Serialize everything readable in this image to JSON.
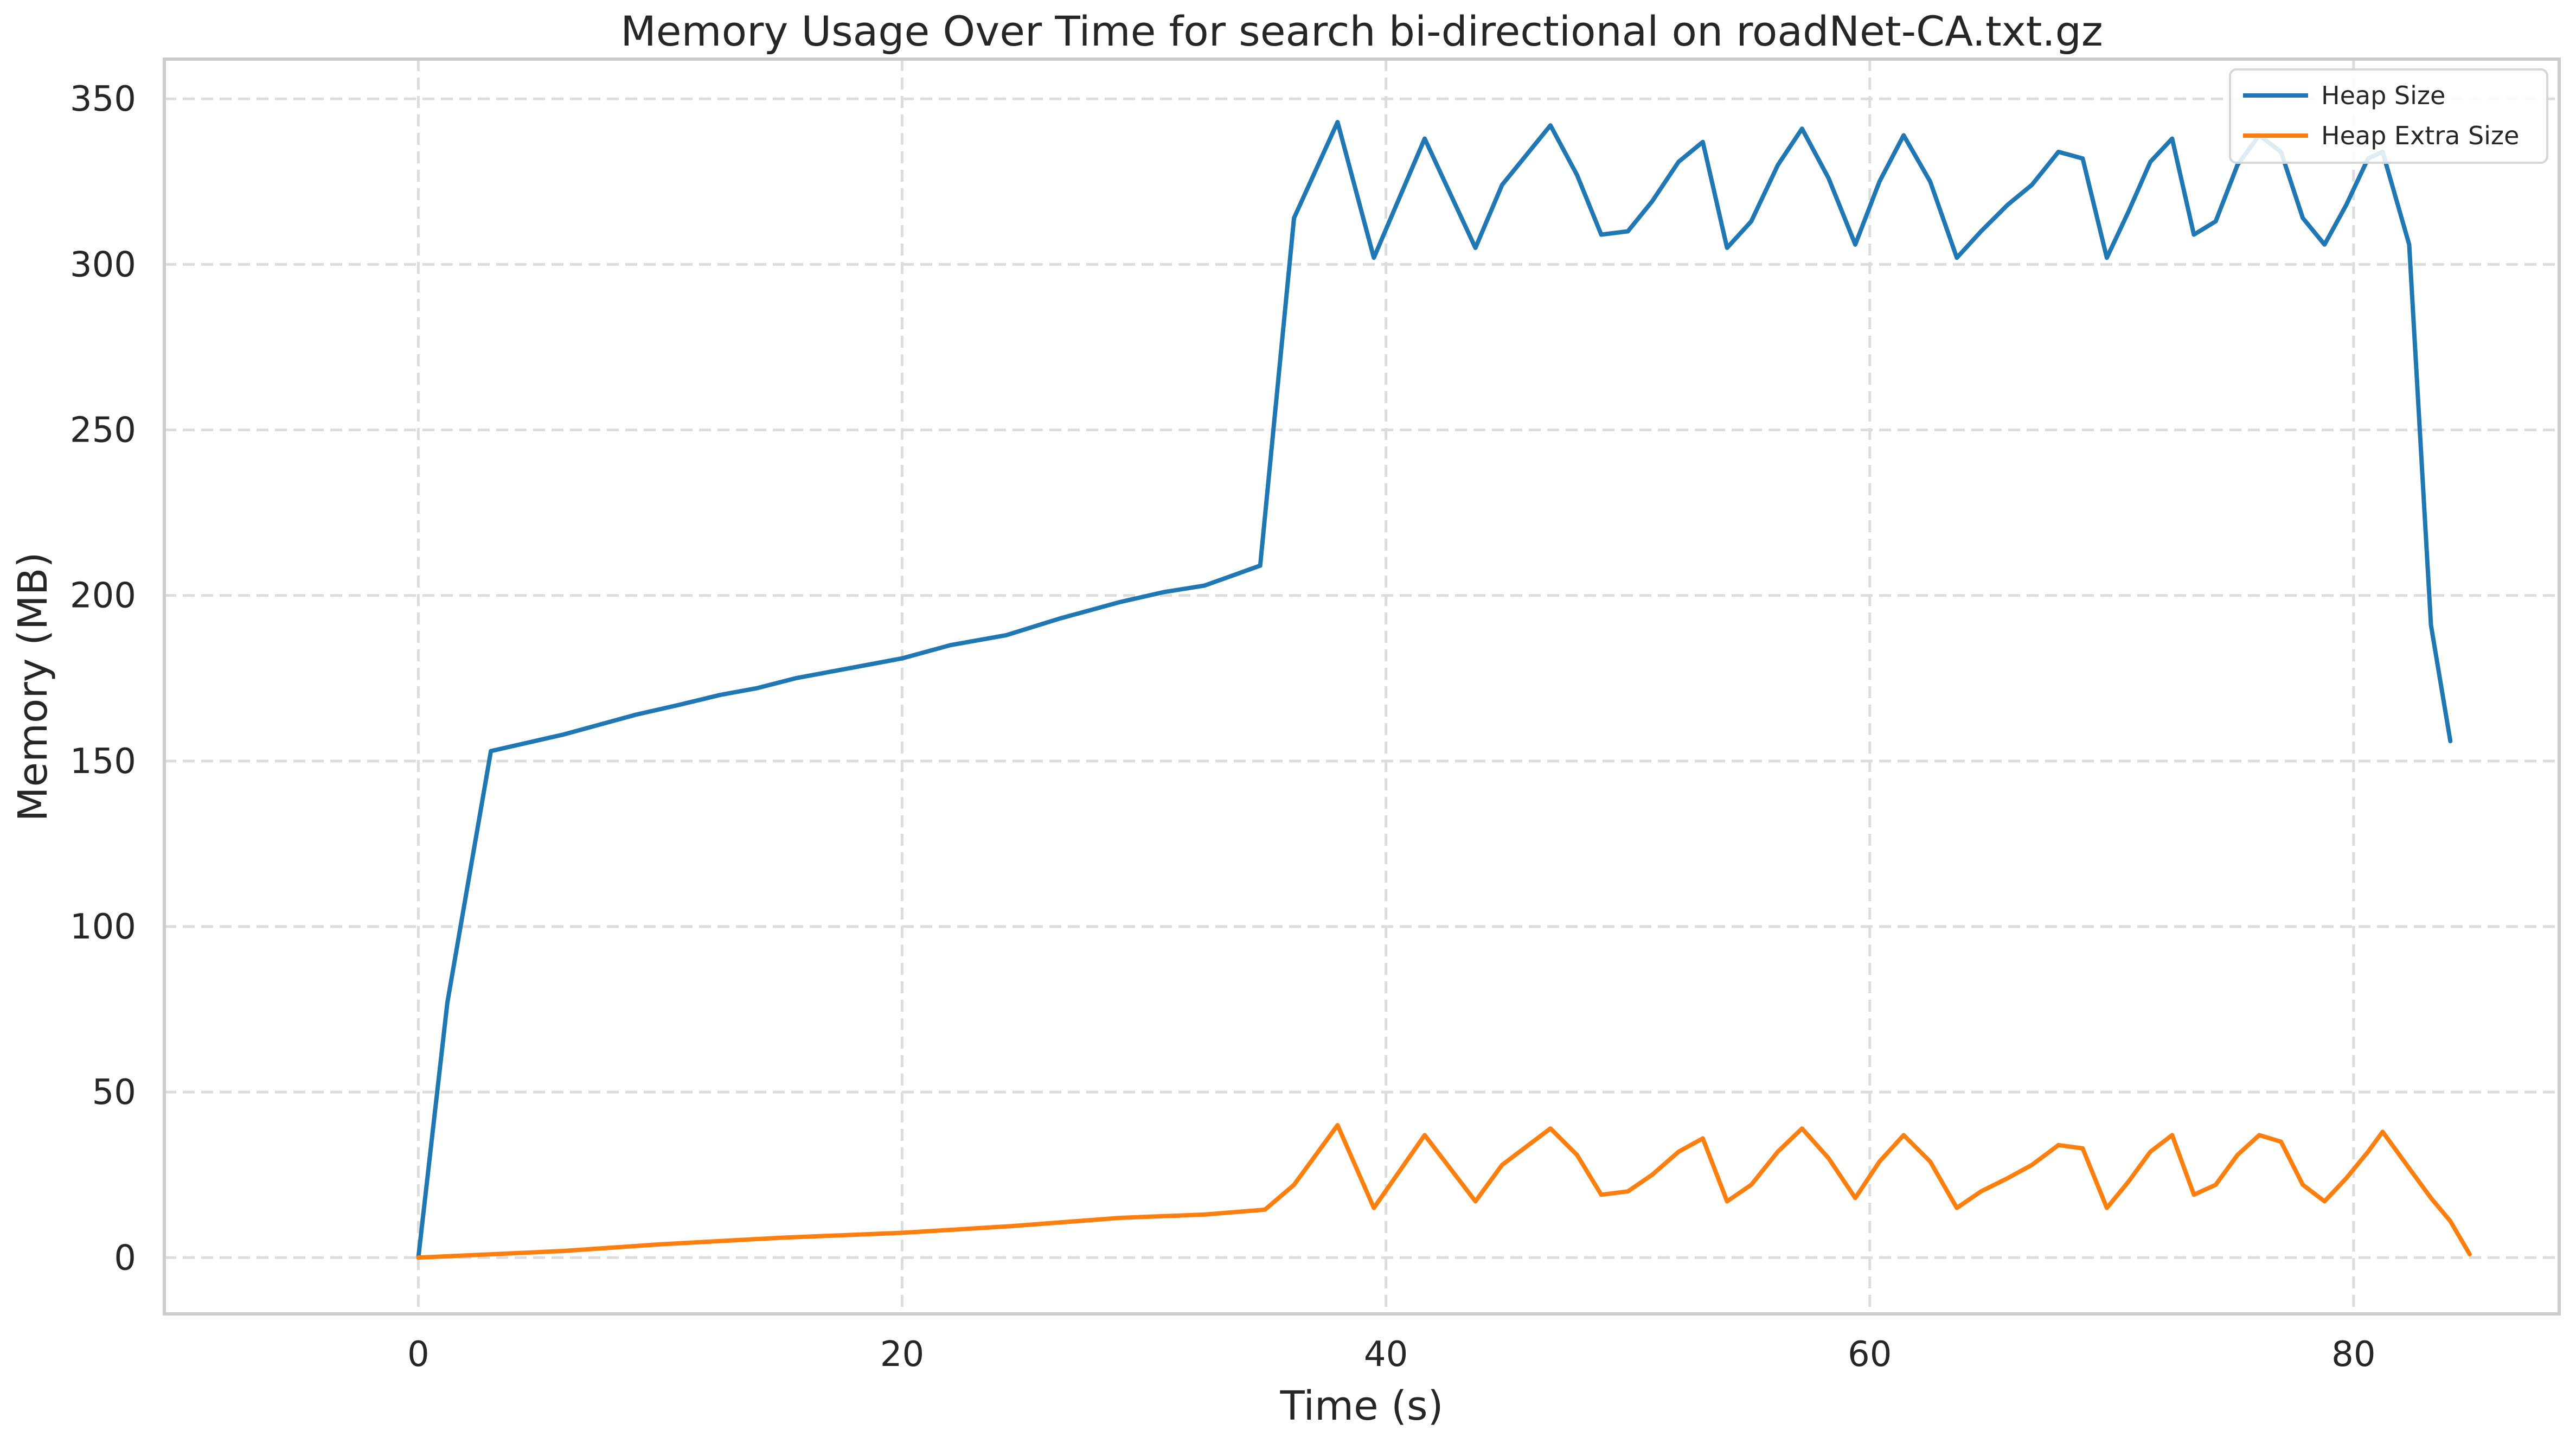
{
  "chart_data": {
    "type": "line",
    "title": "Memory Usage Over Time for search bi-directional on roadNet-CA.txt.gz",
    "xlabel": "Time (s)",
    "ylabel": "Memory (MB)",
    "xlim": [
      -10.5,
      88.5
    ],
    "ylim": [
      -17,
      362
    ],
    "xticks": [
      0,
      20,
      40,
      60,
      80
    ],
    "yticks": [
      0,
      50,
      100,
      150,
      200,
      250,
      300,
      350
    ],
    "grid": true,
    "legend_position": "top-right",
    "series": [
      {
        "name": "Heap Size",
        "color": "#1f77b4",
        "points": [
          [
            0,
            0
          ],
          [
            1.2,
            77
          ],
          [
            3.0,
            153
          ],
          [
            6.0,
            158
          ],
          [
            7.5,
            161
          ],
          [
            9.0,
            164
          ],
          [
            10.8,
            167
          ],
          [
            12.5,
            170
          ],
          [
            14,
            172
          ],
          [
            15.6,
            175
          ],
          [
            17.8,
            178
          ],
          [
            20,
            181
          ],
          [
            22,
            185
          ],
          [
            24.3,
            188
          ],
          [
            26.5,
            193
          ],
          [
            29,
            198
          ],
          [
            30.8,
            201
          ],
          [
            32.5,
            203
          ],
          [
            34.8,
            209
          ],
          [
            36.2,
            314
          ],
          [
            38,
            343
          ],
          [
            39.5,
            302
          ],
          [
            41.6,
            338
          ],
          [
            43.7,
            305
          ],
          [
            44.8,
            324
          ],
          [
            46.8,
            342
          ],
          [
            47.9,
            327
          ],
          [
            48.9,
            309
          ],
          [
            50,
            310
          ],
          [
            51,
            319
          ],
          [
            52.1,
            331
          ],
          [
            53.1,
            337
          ],
          [
            54.1,
            305
          ],
          [
            55.1,
            313
          ],
          [
            56.2,
            330
          ],
          [
            57.2,
            341
          ],
          [
            58.3,
            326
          ],
          [
            59.4,
            306
          ],
          [
            60.4,
            325
          ],
          [
            61.4,
            339
          ],
          [
            62.5,
            325
          ],
          [
            63.6,
            302
          ],
          [
            64.6,
            310
          ],
          [
            65.7,
            318
          ],
          [
            66.7,
            324
          ],
          [
            67.8,
            334
          ],
          [
            68.8,
            332
          ],
          [
            69.8,
            302
          ],
          [
            70.7,
            316
          ],
          [
            71.6,
            331
          ],
          [
            72.5,
            338
          ],
          [
            73.4,
            309
          ],
          [
            74.3,
            313
          ],
          [
            75.2,
            330
          ],
          [
            76.1,
            339
          ],
          [
            77,
            334
          ],
          [
            77.9,
            314
          ],
          [
            78.8,
            306
          ],
          [
            79.7,
            318
          ],
          [
            80.6,
            332
          ],
          [
            81.2,
            334
          ],
          [
            82.3,
            306
          ],
          [
            83.2,
            191
          ],
          [
            84,
            156
          ]
        ]
      },
      {
        "name": "Heap Extra Size",
        "color": "#ff7f0e",
        "points": [
          [
            0,
            0
          ],
          [
            3,
            1
          ],
          [
            6,
            2
          ],
          [
            10,
            4
          ],
          [
            15,
            6
          ],
          [
            20,
            7.5
          ],
          [
            24.5,
            9.5
          ],
          [
            29,
            12
          ],
          [
            32.5,
            13
          ],
          [
            35,
            14.5
          ],
          [
            36.2,
            22
          ],
          [
            38,
            40
          ],
          [
            39.5,
            15
          ],
          [
            41.6,
            37
          ],
          [
            43.7,
            17
          ],
          [
            44.8,
            28
          ],
          [
            46.8,
            39
          ],
          [
            47.9,
            31
          ],
          [
            48.9,
            19
          ],
          [
            50,
            20
          ],
          [
            51,
            25
          ],
          [
            52.1,
            32
          ],
          [
            53.1,
            36
          ],
          [
            54.1,
            17
          ],
          [
            55.1,
            22
          ],
          [
            56.2,
            32
          ],
          [
            57.2,
            39
          ],
          [
            58.3,
            30
          ],
          [
            59.4,
            18
          ],
          [
            60.4,
            29
          ],
          [
            61.4,
            37
          ],
          [
            62.5,
            29
          ],
          [
            63.6,
            15
          ],
          [
            64.6,
            20
          ],
          [
            65.7,
            24
          ],
          [
            66.7,
            28
          ],
          [
            67.8,
            34
          ],
          [
            68.8,
            33
          ],
          [
            69.8,
            15
          ],
          [
            70.7,
            23
          ],
          [
            71.6,
            32
          ],
          [
            72.5,
            37
          ],
          [
            73.4,
            19
          ],
          [
            74.3,
            22
          ],
          [
            75.2,
            31
          ],
          [
            76.1,
            37
          ],
          [
            77,
            35
          ],
          [
            77.9,
            22
          ],
          [
            78.8,
            17
          ],
          [
            79.7,
            24
          ],
          [
            80.6,
            32
          ],
          [
            81.2,
            38
          ],
          [
            82.3,
            27
          ],
          [
            83.2,
            18
          ],
          [
            84,
            11
          ],
          [
            84.8,
            1
          ]
        ]
      }
    ]
  }
}
